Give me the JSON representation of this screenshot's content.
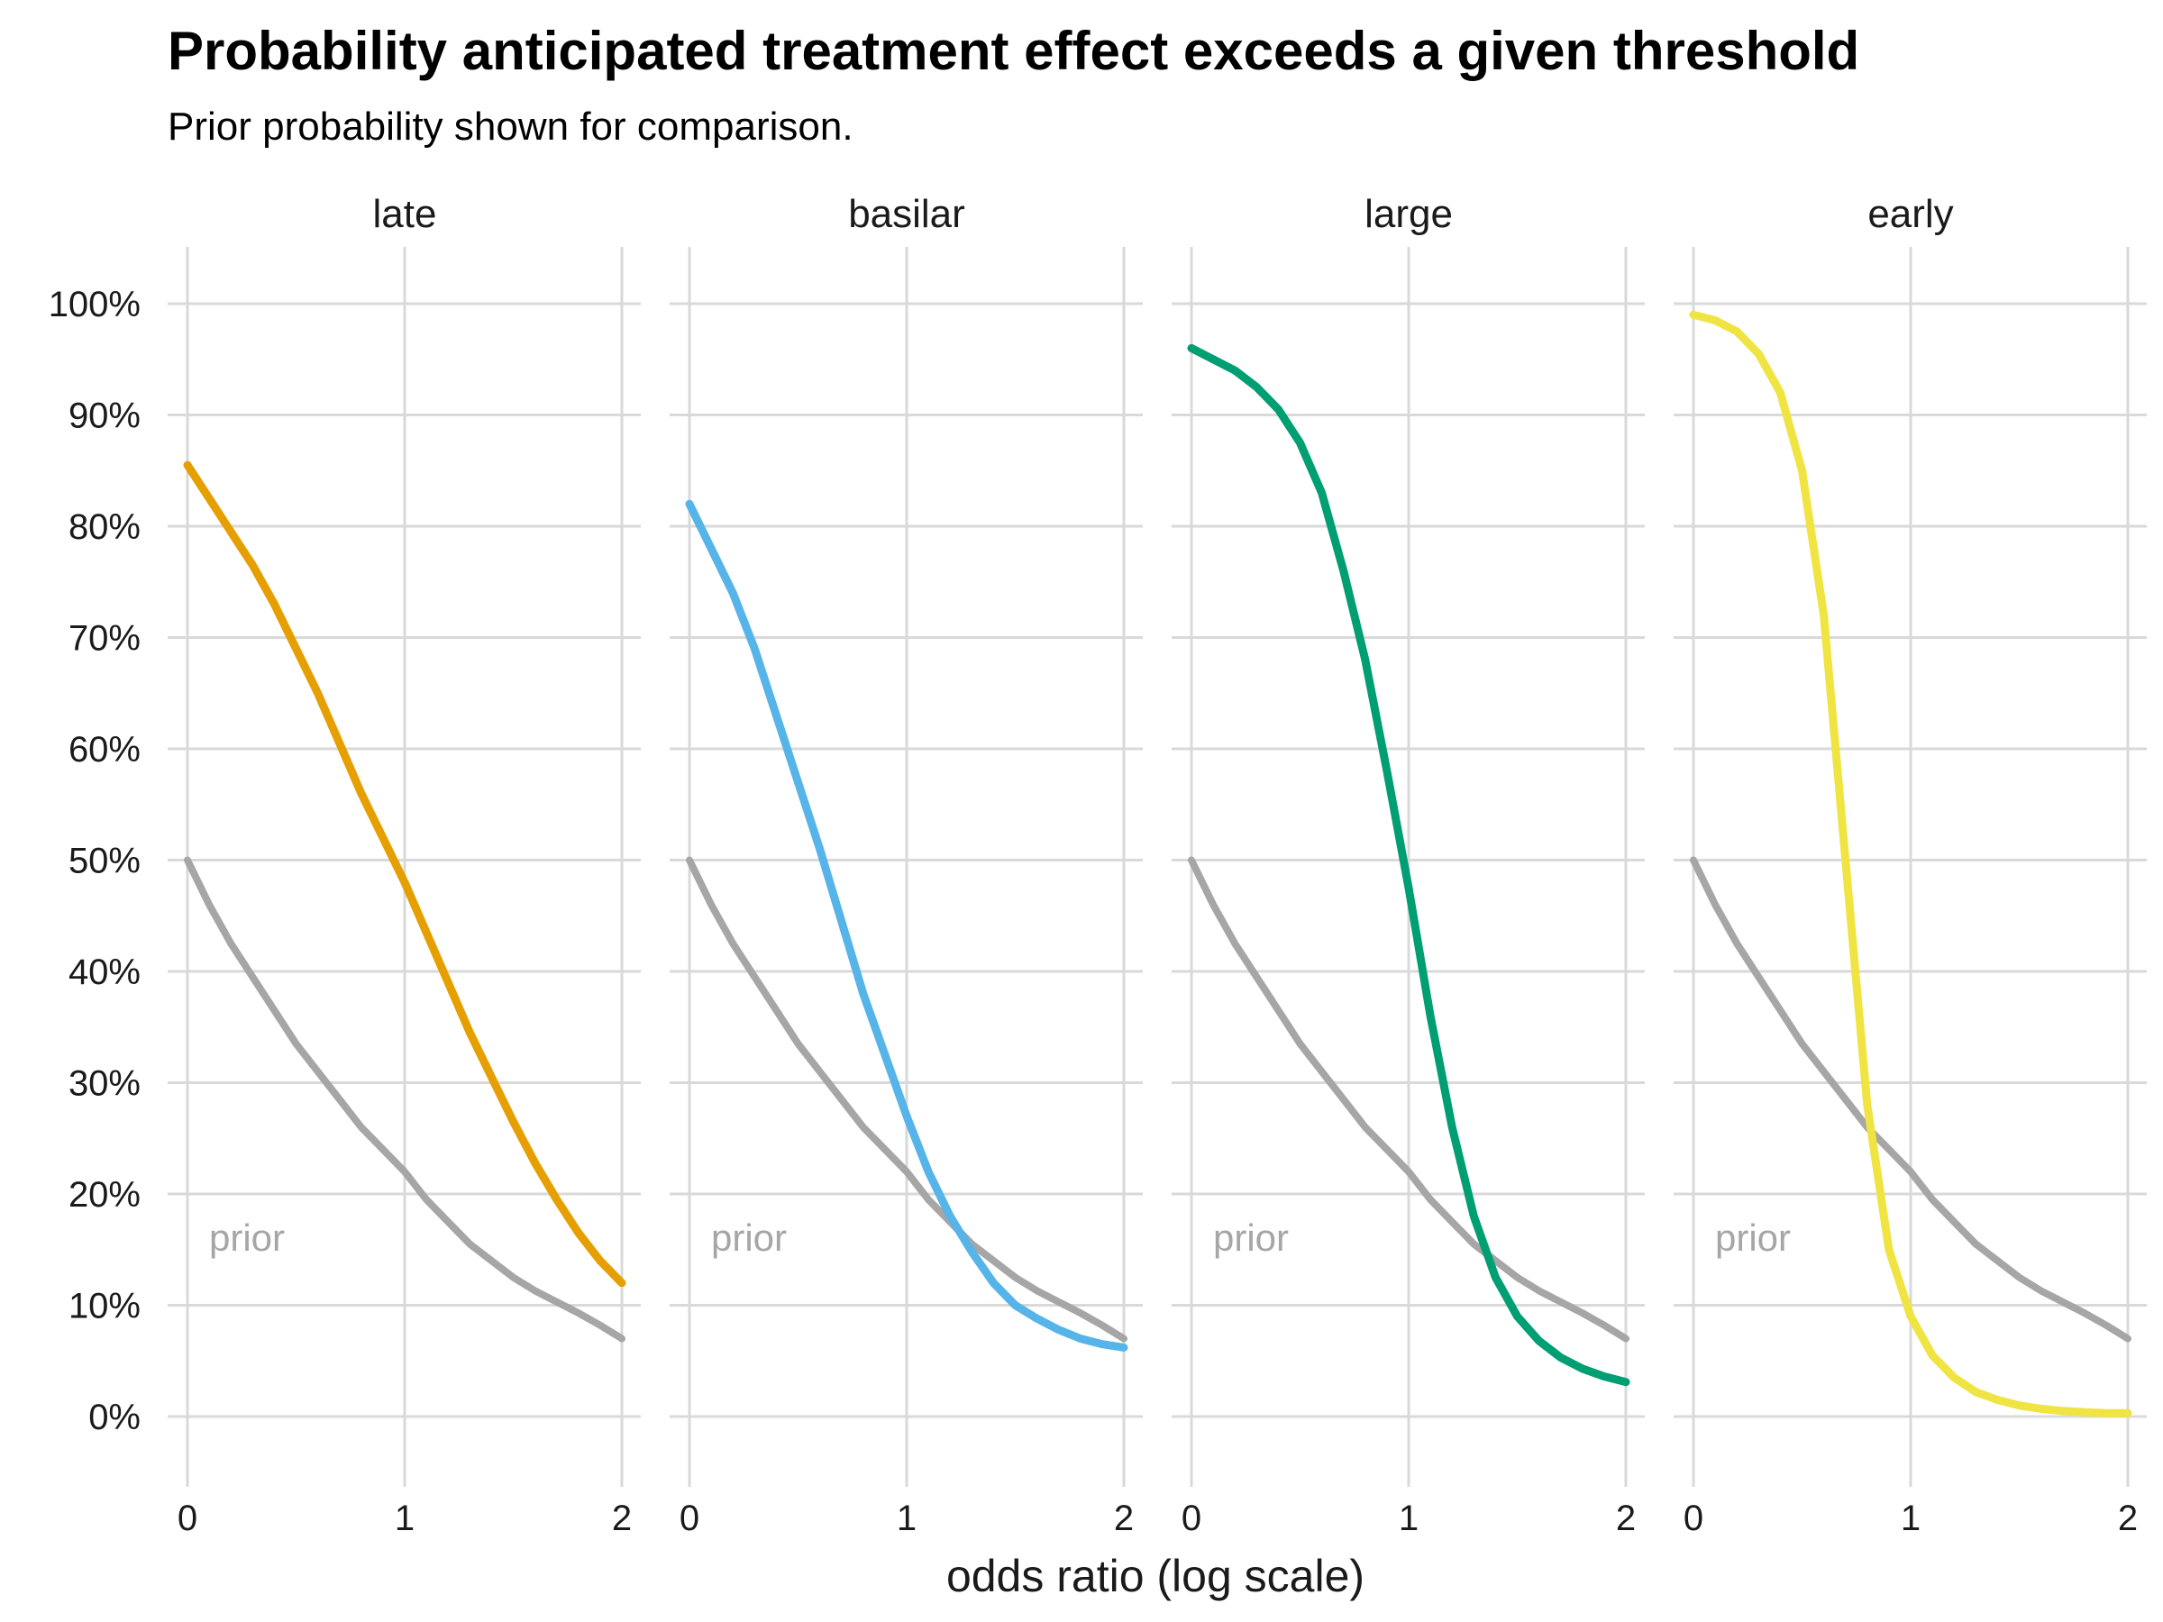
{
  "chart_data": {
    "type": "line",
    "title": "Probability anticipated treatment effect exceeds a given threshold",
    "subtitle": "Prior probability shown for comparison.",
    "xlabel": "odds ratio (log scale)",
    "ylabel": "",
    "xlim": [
      0,
      2
    ],
    "ylim": [
      0,
      1
    ],
    "x_ticks": [
      "0",
      "1",
      "2"
    ],
    "y_ticks": [
      "0%",
      "10%",
      "20%",
      "30%",
      "40%",
      "50%",
      "60%",
      "70%",
      "80%",
      "90%",
      "100%"
    ],
    "grid": true,
    "legend": "none",
    "x": [
      0,
      0.1,
      0.2,
      0.3,
      0.4,
      0.5,
      0.6,
      0.7,
      0.8,
      0.9,
      1.0,
      1.1,
      1.2,
      1.3,
      1.4,
      1.5,
      1.6,
      1.7,
      1.8,
      1.9,
      2.0
    ],
    "prior_label": "prior",
    "prior_color": "#a6a6a6",
    "prior": [
      0.5,
      0.46,
      0.425,
      0.395,
      0.365,
      0.335,
      0.31,
      0.285,
      0.26,
      0.24,
      0.22,
      0.195,
      0.175,
      0.155,
      0.14,
      0.125,
      0.113,
      0.103,
      0.093,
      0.082,
      0.07
    ],
    "panels": [
      {
        "name": "late",
        "color": "#E69F00",
        "values": [
          0.855,
          0.825,
          0.795,
          0.765,
          0.73,
          0.69,
          0.65,
          0.605,
          0.56,
          0.52,
          0.48,
          0.435,
          0.39,
          0.345,
          0.305,
          0.265,
          0.228,
          0.195,
          0.165,
          0.14,
          0.12
        ]
      },
      {
        "name": "basilar",
        "color": "#56B4E9",
        "values": [
          0.82,
          0.78,
          0.74,
          0.69,
          0.63,
          0.57,
          0.51,
          0.445,
          0.38,
          0.325,
          0.27,
          0.22,
          0.18,
          0.148,
          0.12,
          0.1,
          0.088,
          0.078,
          0.07,
          0.065,
          0.062
        ]
      },
      {
        "name": "large",
        "color": "#009E73",
        "values": [
          0.96,
          0.95,
          0.94,
          0.925,
          0.905,
          0.875,
          0.83,
          0.76,
          0.68,
          0.58,
          0.475,
          0.36,
          0.26,
          0.18,
          0.125,
          0.09,
          0.068,
          0.053,
          0.043,
          0.036,
          0.031
        ]
      },
      {
        "name": "early",
        "color": "#F0E442",
        "values": [
          0.99,
          0.985,
          0.975,
          0.955,
          0.92,
          0.85,
          0.72,
          0.5,
          0.28,
          0.15,
          0.09,
          0.055,
          0.035,
          0.022,
          0.015,
          0.01,
          0.007,
          0.005,
          0.004,
          0.003,
          0.003
        ]
      }
    ]
  }
}
